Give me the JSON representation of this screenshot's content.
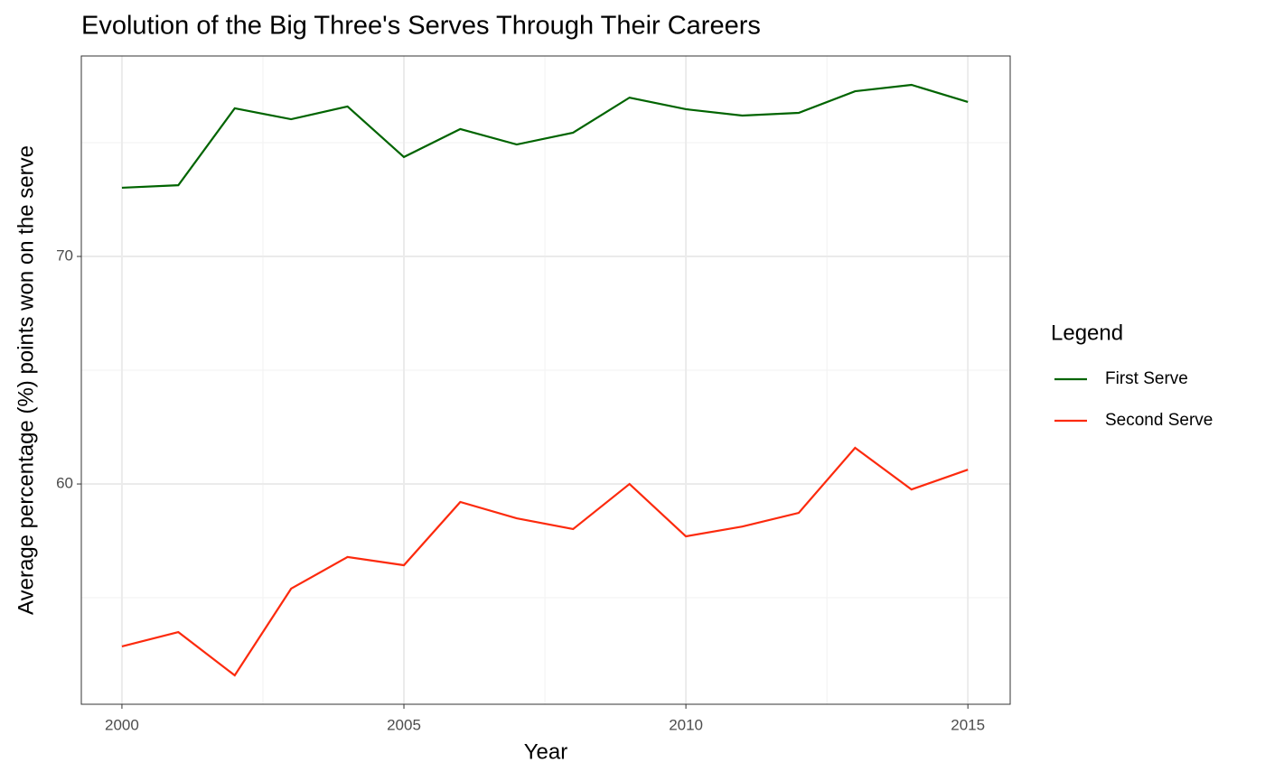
{
  "chart_data": {
    "type": "line",
    "title": "Evolution of the Big Three's Serves Through Their Careers",
    "x_label": "Year",
    "y_label": "Average percentage (%) points won on the serve",
    "legend_title": "Legend",
    "legend_position": "right",
    "x": [
      2000,
      2001,
      2002,
      2003,
      2004,
      2005,
      2006,
      2007,
      2008,
      2009,
      2010,
      2011,
      2012,
      2013,
      2014,
      2015
    ],
    "series": [
      {
        "name": "First Serve",
        "color": "#006400",
        "values": [
          73.02,
          73.13,
          76.51,
          76.03,
          76.59,
          74.37,
          75.6,
          74.92,
          75.44,
          76.98,
          76.47,
          76.19,
          76.31,
          77.26,
          77.54,
          76.79
        ]
      },
      {
        "name": "Second Serve",
        "color": "#fc2a0d",
        "values": [
          52.86,
          53.49,
          51.59,
          55.4,
          56.79,
          56.43,
          59.21,
          58.49,
          58.02,
          60.0,
          57.7,
          58.13,
          58.73,
          61.59,
          59.76,
          60.63
        ]
      }
    ],
    "xlim": [
      1999.28,
      2015.75
    ],
    "xticks": [
      2000,
      2005,
      2010,
      2015
    ],
    "ylim": [
      50.32,
      78.81
    ],
    "yticks": [
      60,
      70
    ],
    "grid": true,
    "minor_grid": true
  }
}
